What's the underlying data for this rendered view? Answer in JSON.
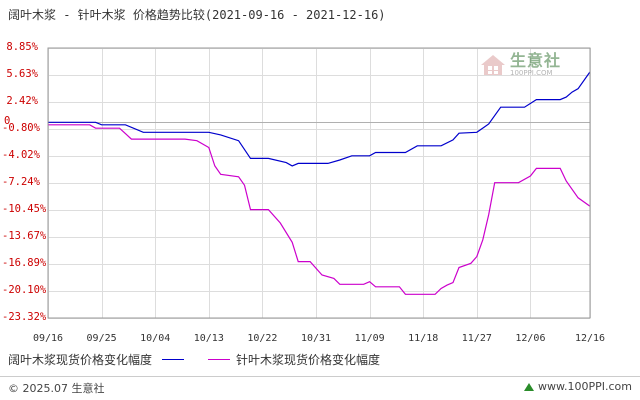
{
  "title": "阔叶木浆 - 针叶木浆 价格趋势比较(2021-09-16 - 2021-12-16)",
  "chart_data": {
    "type": "line",
    "y_ticks": [
      "8.85%",
      "5.63%",
      "2.42%",
      "-0.80%",
      "-4.02%",
      "-7.24%",
      "-10.45%",
      "-13.67%",
      "-16.89%",
      "-20.10%",
      "-23.32%"
    ],
    "y_tick_values": [
      8.85,
      5.63,
      2.42,
      -0.8,
      -4.02,
      -7.24,
      -10.45,
      -13.67,
      -16.89,
      -20.1,
      -23.32
    ],
    "zero_label": "0",
    "x_ticks": [
      "09/16",
      "09/25",
      "10/04",
      "10/13",
      "10/22",
      "10/31",
      "11/09",
      "11/18",
      "11/27",
      "12/06",
      "12/16"
    ],
    "x_tick_values": [
      "2021-09-16",
      "2021-09-25",
      "2021-10-04",
      "2021-10-13",
      "2021-10-22",
      "2021-10-31",
      "2021-11-09",
      "2021-11-18",
      "2021-11-27",
      "2021-12-06",
      "2021-12-16"
    ],
    "ylim": [
      -23.32,
      8.85
    ],
    "xlim": [
      "2021-09-16",
      "2021-12-16"
    ],
    "grid": true,
    "legend_position": "bottom",
    "series": [
      {
        "name": "阔叶木浆现货价格变化幅度",
        "color": "#0000cc",
        "points": [
          [
            "2021-09-16",
            0.0
          ],
          [
            "2021-09-24",
            0.0
          ],
          [
            "2021-09-25",
            -0.3
          ],
          [
            "2021-09-29",
            -0.3
          ],
          [
            "2021-10-02",
            -1.2
          ],
          [
            "2021-10-13",
            -1.2
          ],
          [
            "2021-10-15",
            -1.5
          ],
          [
            "2021-10-18",
            -2.2
          ],
          [
            "2021-10-20",
            -4.3
          ],
          [
            "2021-10-23",
            -4.3
          ],
          [
            "2021-10-26",
            -4.8
          ],
          [
            "2021-10-27",
            -5.2
          ],
          [
            "2021-10-28",
            -4.9
          ],
          [
            "2021-11-02",
            -4.9
          ],
          [
            "2021-11-04",
            -4.5
          ],
          [
            "2021-11-06",
            -4.0
          ],
          [
            "2021-11-09",
            -4.0
          ],
          [
            "2021-11-10",
            -3.6
          ],
          [
            "2021-11-15",
            -3.6
          ],
          [
            "2021-11-17",
            -2.8
          ],
          [
            "2021-11-21",
            -2.8
          ],
          [
            "2021-11-23",
            -2.1
          ],
          [
            "2021-11-24",
            -1.3
          ],
          [
            "2021-11-27",
            -1.2
          ],
          [
            "2021-11-29",
            -0.2
          ],
          [
            "2021-12-01",
            1.8
          ],
          [
            "2021-12-05",
            1.8
          ],
          [
            "2021-12-07",
            2.7
          ],
          [
            "2021-12-11",
            2.7
          ],
          [
            "2021-12-12",
            3.0
          ],
          [
            "2021-12-13",
            3.6
          ],
          [
            "2021-12-14",
            4.0
          ],
          [
            "2021-12-16",
            6.0
          ]
        ]
      },
      {
        "name": "针叶木浆现货价格变化幅度",
        "color": "#cc00cc",
        "points": [
          [
            "2021-09-16",
            -0.3
          ],
          [
            "2021-09-23",
            -0.3
          ],
          [
            "2021-09-24",
            -0.7
          ],
          [
            "2021-09-28",
            -0.7
          ],
          [
            "2021-09-30",
            -2.0
          ],
          [
            "2021-10-09",
            -2.0
          ],
          [
            "2021-10-11",
            -2.2
          ],
          [
            "2021-10-13",
            -3.0
          ],
          [
            "2021-10-14",
            -5.2
          ],
          [
            "2021-10-15",
            -6.2
          ],
          [
            "2021-10-18",
            -6.5
          ],
          [
            "2021-10-19",
            -7.5
          ],
          [
            "2021-10-20",
            -10.4
          ],
          [
            "2021-10-23",
            -10.4
          ],
          [
            "2021-10-25",
            -12.0
          ],
          [
            "2021-10-27",
            -14.3
          ],
          [
            "2021-10-28",
            -16.6
          ],
          [
            "2021-10-30",
            -16.6
          ],
          [
            "2021-11-01",
            -18.2
          ],
          [
            "2021-11-03",
            -18.6
          ],
          [
            "2021-11-04",
            -19.3
          ],
          [
            "2021-11-08",
            -19.3
          ],
          [
            "2021-11-09",
            -19.0
          ],
          [
            "2021-11-10",
            -19.6
          ],
          [
            "2021-11-14",
            -19.6
          ],
          [
            "2021-11-15",
            -20.5
          ],
          [
            "2021-11-20",
            -20.5
          ],
          [
            "2021-11-21",
            -19.8
          ],
          [
            "2021-11-22",
            -19.4
          ],
          [
            "2021-11-23",
            -19.1
          ],
          [
            "2021-11-24",
            -17.3
          ],
          [
            "2021-11-26",
            -16.8
          ],
          [
            "2021-11-27",
            -16.0
          ],
          [
            "2021-11-28",
            -14.0
          ],
          [
            "2021-11-29",
            -11.0
          ],
          [
            "2021-11-30",
            -7.2
          ],
          [
            "2021-12-04",
            -7.2
          ],
          [
            "2021-12-06",
            -6.4
          ],
          [
            "2021-12-07",
            -5.5
          ],
          [
            "2021-12-11",
            -5.5
          ],
          [
            "2021-12-12",
            -7.0
          ],
          [
            "2021-12-14",
            -9.0
          ],
          [
            "2021-12-16",
            -10.0
          ]
        ]
      }
    ]
  },
  "footer": {
    "copyright": "© 2025.07 生意社",
    "website": "www.100PPI.com"
  },
  "watermark": {
    "brand": "生意社",
    "sub": "100PPI.COM"
  }
}
